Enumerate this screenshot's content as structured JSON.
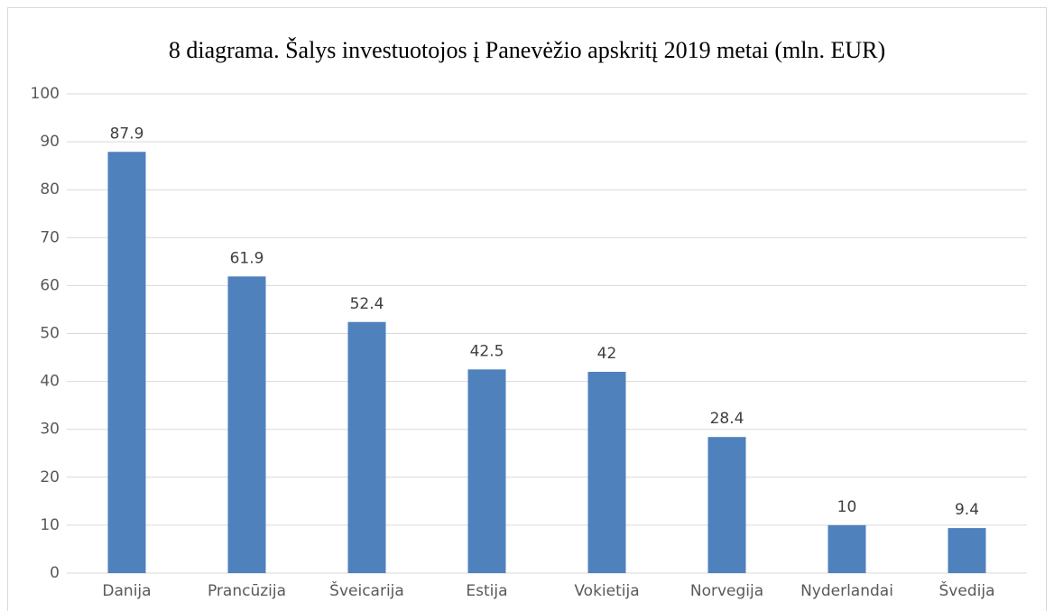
{
  "chart_data": {
    "type": "bar",
    "title": "8 diagrama. Šalys investuotojos į Panevėžio apskritį 2019 metai (mln. EUR)",
    "categories": [
      "Danija",
      "Prancūzija",
      "Šveicarija",
      "Estija",
      "Vokietija",
      "Norvegija",
      "Nyderlandai",
      "Švedija"
    ],
    "values": [
      87.9,
      61.9,
      52.4,
      42.5,
      42,
      28.4,
      10,
      9.4
    ],
    "color": "#4f81bd",
    "ylim": [
      0,
      100
    ],
    "yticks": [
      0,
      10,
      20,
      30,
      40,
      50,
      60,
      70,
      80,
      90,
      100
    ],
    "grid": true
  }
}
